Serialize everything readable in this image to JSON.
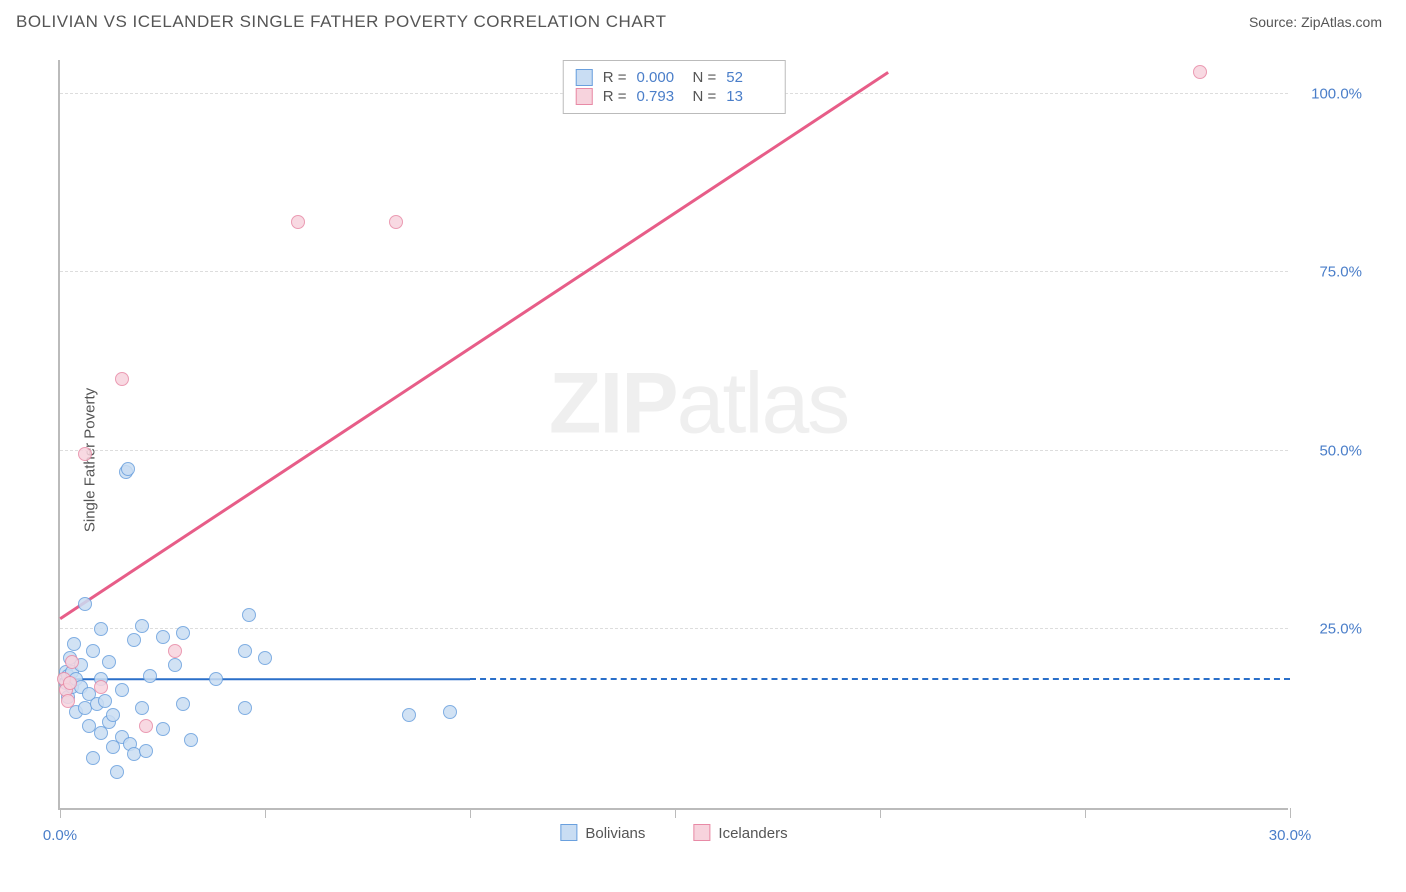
{
  "header": {
    "title": "BOLIVIAN VS ICELANDER SINGLE FATHER POVERTY CORRELATION CHART",
    "source": "Source: ZipAtlas.com"
  },
  "chart": {
    "type": "scatter",
    "ylabel": "Single Father Poverty",
    "watermark": "ZIPatlas",
    "xlim": [
      0,
      30
    ],
    "ylim": [
      0,
      105
    ],
    "x_axis_label_color": "#4a7ec9",
    "y_axis_label_color": "#4a7ec9",
    "grid_color": "#dddddd",
    "axis_color": "#bbbbbb",
    "background_color": "#ffffff",
    "y_gridlines": [
      {
        "value": 25,
        "label": "25.0%"
      },
      {
        "value": 50,
        "label": "50.0%"
      },
      {
        "value": 75,
        "label": "75.0%"
      },
      {
        "value": 100,
        "label": "100.0%"
      }
    ],
    "x_ticks": [
      0,
      5,
      10,
      15,
      20,
      25,
      30
    ],
    "x_tick_labels": {
      "0": "0.0%",
      "30": "30.0%"
    },
    "series": [
      {
        "name": "Bolivians",
        "fill_color": "#c9ddf3",
        "stroke_color": "#6aa0de",
        "marker_radius": 7,
        "R": "0.000",
        "N": "52",
        "trend": {
          "x1": 0,
          "y1": 18.0,
          "x2": 10,
          "y2": 18.0,
          "solid_color": "#2a6fc9",
          "dash_to_x": 30,
          "width": 2.5
        },
        "points": [
          {
            "x": 0.15,
            "y": 19.0
          },
          {
            "x": 0.15,
            "y": 17.5
          },
          {
            "x": 0.2,
            "y": 18.5
          },
          {
            "x": 0.2,
            "y": 15.5
          },
          {
            "x": 0.25,
            "y": 21.0
          },
          {
            "x": 0.3,
            "y": 17.0
          },
          {
            "x": 0.3,
            "y": 19.0
          },
          {
            "x": 0.35,
            "y": 23.0
          },
          {
            "x": 0.4,
            "y": 13.5
          },
          {
            "x": 0.4,
            "y": 18.0
          },
          {
            "x": 0.5,
            "y": 20.0
          },
          {
            "x": 0.5,
            "y": 17.0
          },
          {
            "x": 0.6,
            "y": 14.0
          },
          {
            "x": 0.6,
            "y": 28.5
          },
          {
            "x": 0.7,
            "y": 16.0
          },
          {
            "x": 0.7,
            "y": 11.5
          },
          {
            "x": 0.8,
            "y": 22.0
          },
          {
            "x": 0.8,
            "y": 7.0
          },
          {
            "x": 0.9,
            "y": 14.5
          },
          {
            "x": 1.0,
            "y": 18.0
          },
          {
            "x": 1.0,
            "y": 10.5
          },
          {
            "x": 1.0,
            "y": 25.0
          },
          {
            "x": 1.1,
            "y": 15.0
          },
          {
            "x": 1.2,
            "y": 12.0
          },
          {
            "x": 1.2,
            "y": 20.5
          },
          {
            "x": 1.3,
            "y": 8.5
          },
          {
            "x": 1.3,
            "y": 13.0
          },
          {
            "x": 1.4,
            "y": 5.0
          },
          {
            "x": 1.5,
            "y": 10.0
          },
          {
            "x": 1.5,
            "y": 16.5
          },
          {
            "x": 1.6,
            "y": 47.0
          },
          {
            "x": 1.65,
            "y": 47.5
          },
          {
            "x": 1.7,
            "y": 9.0
          },
          {
            "x": 1.8,
            "y": 23.5
          },
          {
            "x": 1.8,
            "y": 7.5
          },
          {
            "x": 2.0,
            "y": 14.0
          },
          {
            "x": 2.0,
            "y": 25.5
          },
          {
            "x": 2.1,
            "y": 8.0
          },
          {
            "x": 2.2,
            "y": 18.5
          },
          {
            "x": 2.5,
            "y": 24.0
          },
          {
            "x": 2.5,
            "y": 11.0
          },
          {
            "x": 2.8,
            "y": 20.0
          },
          {
            "x": 3.0,
            "y": 24.5
          },
          {
            "x": 3.0,
            "y": 14.5
          },
          {
            "x": 3.2,
            "y": 9.5
          },
          {
            "x": 3.8,
            "y": 18.0
          },
          {
            "x": 4.5,
            "y": 22.0
          },
          {
            "x": 4.5,
            "y": 14.0
          },
          {
            "x": 4.6,
            "y": 27.0
          },
          {
            "x": 5.0,
            "y": 21.0
          },
          {
            "x": 8.5,
            "y": 13.0
          },
          {
            "x": 9.5,
            "y": 13.5
          }
        ]
      },
      {
        "name": "Icelanders",
        "fill_color": "#f7d3dd",
        "stroke_color": "#e88aa6",
        "marker_radius": 7,
        "R": "0.793",
        "N": "13",
        "trend": {
          "x1": 0,
          "y1": 26.5,
          "x2": 20.2,
          "y2": 103.0,
          "solid_color": "#e75d88",
          "width": 2.5
        },
        "points": [
          {
            "x": 0.1,
            "y": 18.0
          },
          {
            "x": 0.15,
            "y": 16.5
          },
          {
            "x": 0.2,
            "y": 15.0
          },
          {
            "x": 0.25,
            "y": 17.5
          },
          {
            "x": 0.3,
            "y": 20.5
          },
          {
            "x": 0.6,
            "y": 49.5
          },
          {
            "x": 1.0,
            "y": 17.0
          },
          {
            "x": 1.5,
            "y": 60.0
          },
          {
            "x": 2.1,
            "y": 11.5
          },
          {
            "x": 2.8,
            "y": 22.0
          },
          {
            "x": 5.8,
            "y": 82.0
          },
          {
            "x": 8.2,
            "y": 82.0
          },
          {
            "x": 27.8,
            "y": 103.0
          }
        ]
      }
    ],
    "bottom_legend": [
      {
        "label": "Bolivians",
        "fill": "#c9ddf3",
        "stroke": "#6aa0de"
      },
      {
        "label": "Icelanders",
        "fill": "#f7d3dd",
        "stroke": "#e88aa6"
      }
    ]
  }
}
